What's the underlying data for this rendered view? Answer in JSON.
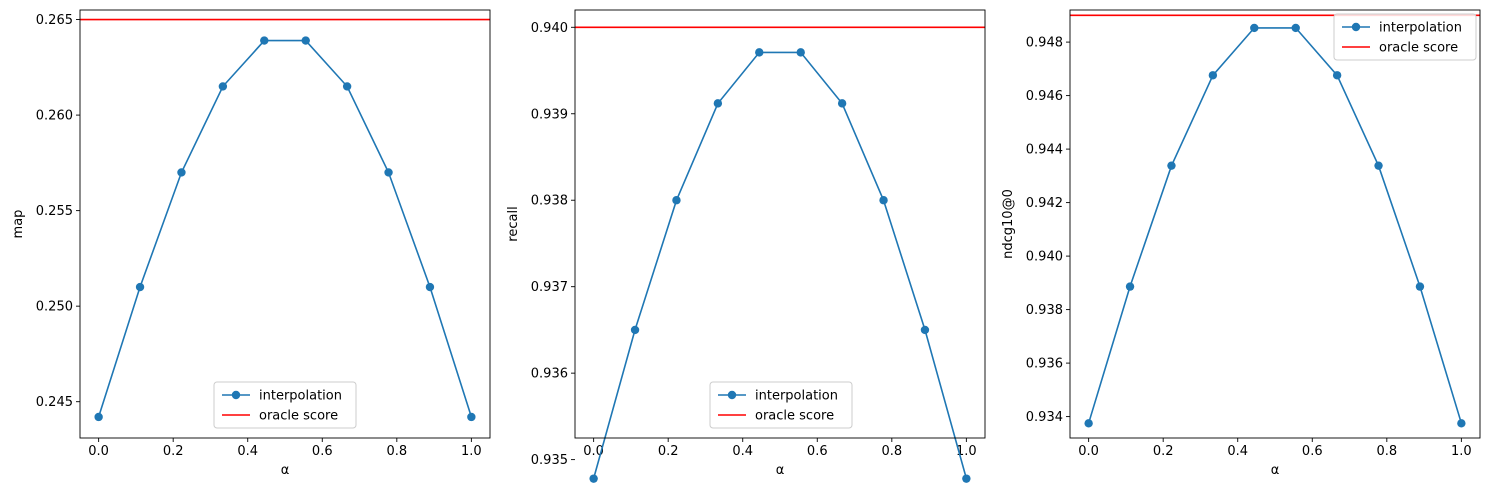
{
  "figure": {
    "chart_data": [
      {
        "type": "line",
        "xlabel": "α",
        "ylabel": "map",
        "xlim": [
          -0.05,
          1.05
        ],
        "ylim": [
          0.2431,
          0.2655
        ],
        "xticks": [
          "0.0",
          "0.2",
          "0.4",
          "0.6",
          "0.8",
          "1.0"
        ],
        "xtick_values": [
          0,
          0.2,
          0.4,
          0.6,
          0.8,
          1.0
        ],
        "yticks": [
          "0.245",
          "0.250",
          "0.255",
          "0.260",
          "0.265"
        ],
        "ytick_values": [
          0.245,
          0.25,
          0.255,
          0.26,
          0.265
        ],
        "x": [
          0.0,
          0.1111,
          0.2222,
          0.3333,
          0.4444,
          0.5556,
          0.6667,
          0.7778,
          0.8889,
          1.0
        ],
        "series": [
          {
            "name": "interpolation",
            "values": [
              0.2442,
              0.251,
              0.257,
              0.2615,
              0.2639,
              0.2639,
              0.2615,
              0.257,
              0.251,
              0.2442
            ],
            "color": "#1f77b4",
            "marker": "circle"
          }
        ],
        "hlines": [
          {
            "name": "oracle score",
            "y": 0.265,
            "color": "#ff0000"
          }
        ],
        "legend": {
          "placement": "lower-center",
          "entries": [
            "interpolation",
            "oracle score"
          ]
        },
        "grid": false
      },
      {
        "type": "line",
        "xlabel": "α",
        "ylabel": "recall",
        "xlim": [
          -0.05,
          1.05
        ],
        "ylim": [
          0.93525,
          0.9402
        ],
        "xticks": [
          "0.0",
          "0.2",
          "0.4",
          "0.6",
          "0.8",
          "1.0"
        ],
        "xtick_values": [
          0,
          0.2,
          0.4,
          0.6,
          0.8,
          1.0
        ],
        "yticks": [
          "0.935",
          "0.936",
          "0.937",
          "0.938",
          "0.939",
          "0.940"
        ],
        "ytick_values": [
          0.935,
          0.936,
          0.937,
          0.938,
          0.939,
          0.94
        ],
        "x": [
          0.0,
          0.1111,
          0.2222,
          0.3333,
          0.4444,
          0.5556,
          0.6667,
          0.7778,
          0.8889,
          1.0
        ],
        "series": [
          {
            "name": "interpolation",
            "values": [
              0.93478,
              0.9365,
              0.938,
              0.93912,
              0.93971,
              0.93971,
              0.93912,
              0.938,
              0.9365,
              0.93478
            ],
            "color": "#1f77b4",
            "marker": "circle"
          }
        ],
        "hlines": [
          {
            "name": "oracle score",
            "y": 0.94,
            "color": "#ff0000"
          }
        ],
        "legend": {
          "placement": "lower-center",
          "entries": [
            "interpolation",
            "oracle score"
          ]
        },
        "grid": false
      },
      {
        "type": "line",
        "xlabel": "α",
        "ylabel": "ndcg10@0",
        "xlim": [
          -0.05,
          1.05
        ],
        "ylim": [
          0.9332,
          0.9492
        ],
        "xticks": [
          "0.0",
          "0.2",
          "0.4",
          "0.6",
          "0.8",
          "1.0"
        ],
        "xtick_values": [
          0,
          0.2,
          0.4,
          0.6,
          0.8,
          1.0
        ],
        "yticks": [
          "0.934",
          "0.936",
          "0.938",
          "0.940",
          "0.942",
          "0.944",
          "0.946",
          "0.948"
        ],
        "ytick_values": [
          0.934,
          0.936,
          0.938,
          0.94,
          0.942,
          0.944,
          0.946,
          0.948
        ],
        "x": [
          0.0,
          0.1111,
          0.2222,
          0.3333,
          0.4444,
          0.5556,
          0.6667,
          0.7778,
          0.8889,
          1.0
        ],
        "series": [
          {
            "name": "interpolation",
            "values": [
              0.93375,
              0.93886,
              0.94338,
              0.94676,
              0.94853,
              0.94853,
              0.94676,
              0.94338,
              0.93886,
              0.93375
            ],
            "color": "#1f77b4",
            "marker": "circle"
          }
        ],
        "hlines": [
          {
            "name": "oracle score",
            "y": 0.949,
            "color": "#ff0000"
          }
        ],
        "legend": {
          "placement": "upper-right",
          "entries": [
            "interpolation",
            "oracle score"
          ]
        },
        "grid": false
      }
    ]
  }
}
